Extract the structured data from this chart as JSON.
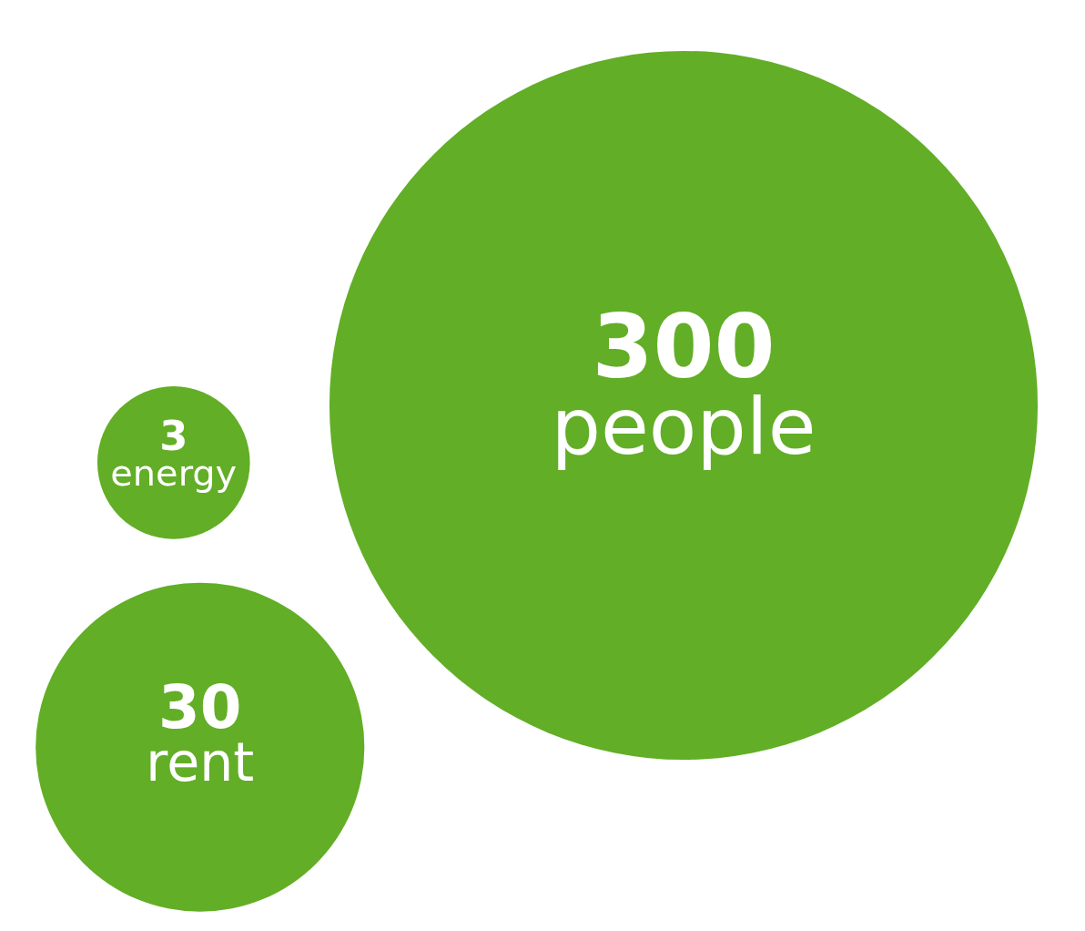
{
  "chart_data": {
    "type": "other",
    "categories": [
      "energy",
      "rent",
      "people"
    ],
    "values": [
      3,
      30,
      300
    ],
    "color": "#62ae26",
    "data_labels": true
  }
}
